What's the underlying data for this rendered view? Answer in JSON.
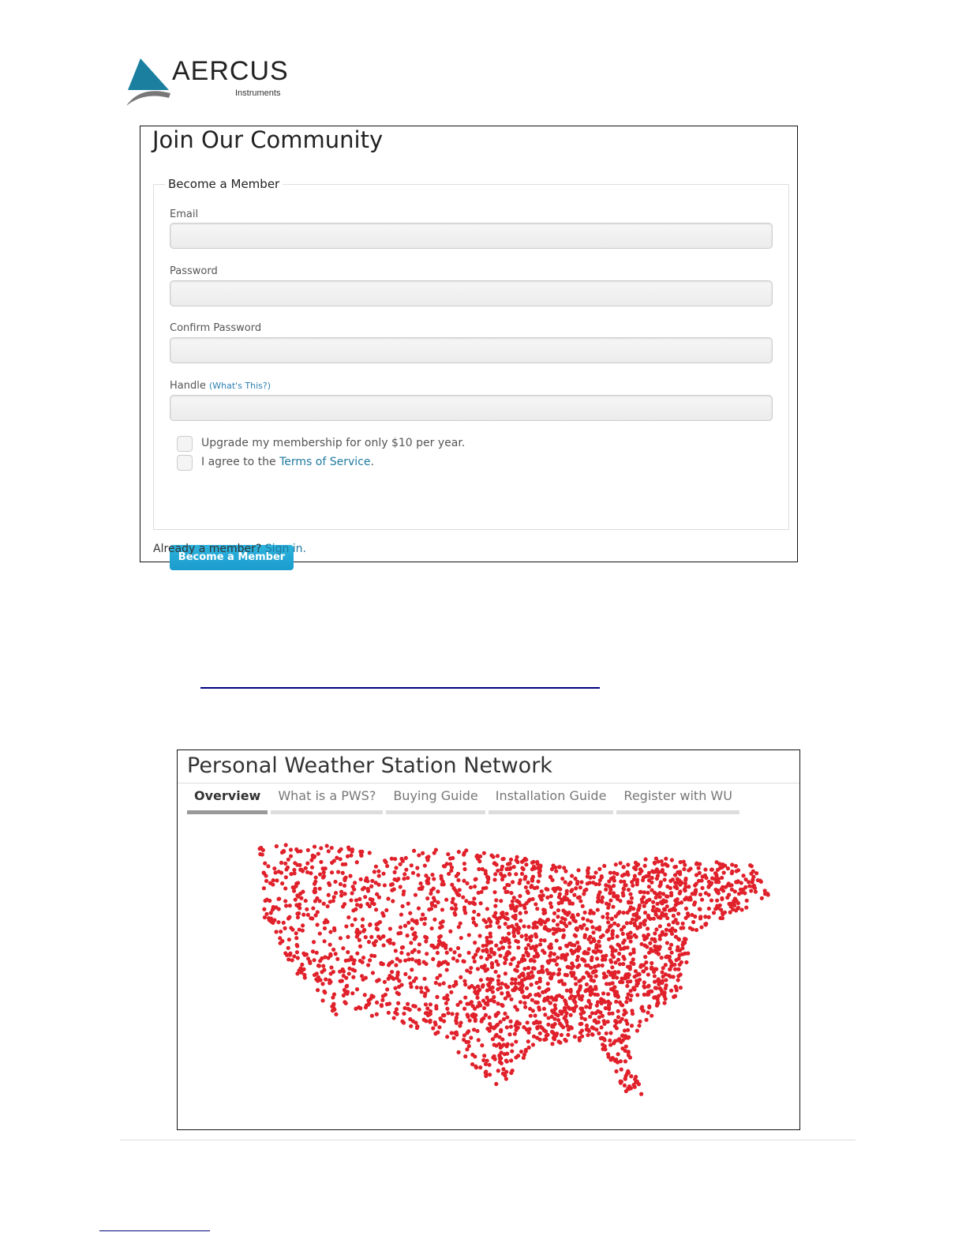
{
  "logo": {
    "name": "AERCUS",
    "tagline": "Instruments"
  },
  "join": {
    "title": "Join Our Community",
    "legend": "Become a Member",
    "fields": [
      {
        "label": "Email",
        "value": ""
      },
      {
        "label": "Password",
        "value": ""
      },
      {
        "label": "Confirm Password",
        "value": ""
      },
      {
        "label": "Handle",
        "value": "",
        "help": "(What's This?)"
      }
    ],
    "checkboxes": {
      "upgrade": "Upgrade my membership for only $10 per year.",
      "agree_prefix": "I agree to the ",
      "agree_link": "Terms of Service",
      "agree_suffix": "."
    },
    "button": "Become a Member",
    "already": "Already a member? ",
    "sign_in": "Sign in."
  },
  "pws": {
    "title": "Personal Weather Station Network",
    "tabs": [
      "Overview",
      "What is a PWS?",
      "Buying Guide",
      "Installation Guide",
      "Register with WU"
    ],
    "active_tab": "Overview",
    "map_dot_color": "#e0202a"
  }
}
